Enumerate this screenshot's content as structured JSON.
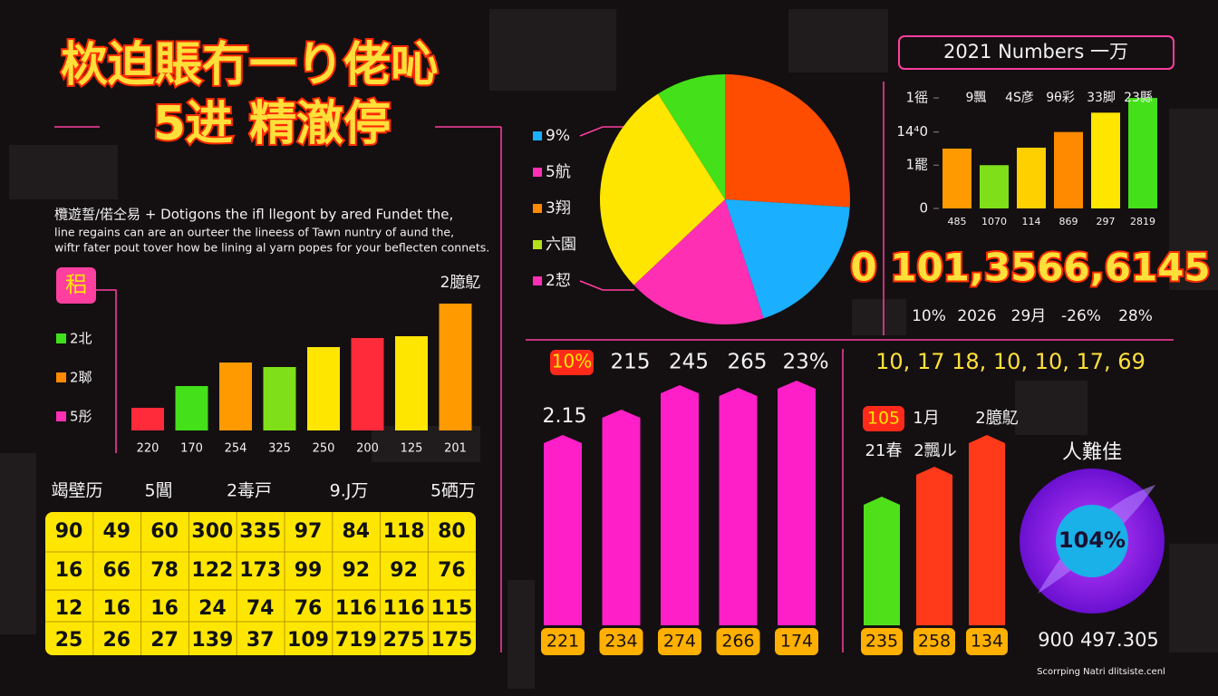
{
  "header": {
    "title": "栨迫賬冇一り佬吣",
    "subtitle": "5进 精澈停"
  },
  "description": [
    "欖遊誓/偌仝易 + Dotigons the ifl llegont by ared Fundet the,",
    "line regains can are an ourteer the lineess of Tawn nuntry of aund the,",
    "wiftr fater pout tover how be lining al yarn popes for your beflecten connets."
  ],
  "chart_data": [
    {
      "type": "bar",
      "badge": "稆",
      "label": "2臆鳦",
      "legend": [
        {
          "name": "2北",
          "color": "#3fe01a"
        },
        {
          "name": "2郰",
          "color": "#ff8a00"
        },
        {
          "name": "5彤",
          "color": "#ff2fb4"
        }
      ],
      "categories": [
        "220",
        "170",
        "254",
        "325",
        "250",
        "200",
        "125",
        "201"
      ],
      "values": [
        25,
        49,
        75,
        70,
        92,
        102,
        104,
        140
      ],
      "colors": [
        "#ff2a3a",
        "#44e01a",
        "#ff9a00",
        "#7fe01a",
        "#ffe600",
        "#ff2a3a",
        "#ffe600",
        "#ff9a00"
      ],
      "ylim": [
        0,
        150
      ]
    },
    {
      "type": "pie",
      "legend": [
        {
          "name": "9%",
          "color": "#1ab0ff"
        },
        {
          "name": "5航",
          "color": "#ff2fb4"
        },
        {
          "name": "3翔",
          "color": "#ff8a00"
        },
        {
          "name": "六園",
          "color": "#b4e01a"
        },
        {
          "name": "2恝",
          "color": "#ff2fb4"
        }
      ],
      "values": [
        26,
        19,
        18,
        28,
        9
      ],
      "colors": [
        "#ff4d00",
        "#1ab0ff",
        "#ff2fb4",
        "#ffe600",
        "#44e01a"
      ]
    },
    {
      "type": "bar",
      "title": "2021   Numbers   一万",
      "annotations": [
        "9飄",
        "4S彦",
        "9θ彩",
        "33脚",
        "23縣"
      ],
      "categories": [
        "485",
        "1070",
        "114",
        "869",
        "297",
        "2819"
      ],
      "values": [
        65,
        47,
        66,
        83,
        104,
        120
      ],
      "colors": [
        "#ff9a00",
        "#7fe01a",
        "#ffd000",
        "#ff8a00",
        "#ffe600",
        "#44e01a"
      ],
      "ylim": [
        0,
        125
      ],
      "yticks": [
        0,
        {
          "value": 47,
          "label": "1罷"
        },
        {
          "value": 83,
          "label": "14⁴0"
        },
        {
          "value": 120,
          "label": "1徭"
        }
      ]
    },
    {
      "type": "bar",
      "label": "2.15",
      "annotations": [
        "10%",
        "215",
        "245",
        "265",
        "23%"
      ],
      "categories": [
        "221",
        "234",
        "274",
        "266",
        "174"
      ],
      "values": [
        210,
        238,
        265,
        262,
        270
      ],
      "color": "#ff1fc8",
      "ylim": [
        0,
        280
      ]
    },
    {
      "type": "bar",
      "header": "10,  17  18, 10, 10, 17, 69",
      "badge": "105",
      "annotations": [
        "1月",
        "2臆鳦"
      ],
      "labels": [
        "21春",
        "2飄ル"
      ],
      "categories": [
        "235",
        "258",
        "134"
      ],
      "values": [
        142,
        175,
        210
      ],
      "colors": [
        "#4fe01a",
        "#ff3a1a",
        "#ff3a1a"
      ],
      "ylim": [
        0,
        280
      ]
    }
  ],
  "stats": {
    "headline": "0 101,3566,6145",
    "items": [
      "10%",
      "2026",
      "29月",
      "-26%",
      "28%"
    ]
  },
  "table": {
    "headers": [
      "竭壁历",
      "5閶",
      "2毒戸",
      "9.J万",
      "5硒万"
    ],
    "rows": [
      [
        90,
        49,
        60,
        300,
        335,
        97,
        84,
        118,
        80
      ],
      [
        16,
        66,
        78,
        122,
        173,
        99,
        92,
        92,
        76
      ],
      [
        12,
        16,
        16,
        24,
        74,
        76,
        116,
        116,
        115
      ],
      [
        25,
        26,
        27,
        139,
        37,
        109,
        719,
        275,
        175
      ]
    ]
  },
  "gauge": {
    "title": "人難佳",
    "value_text": "104%",
    "caption": "900 497.305"
  },
  "footer": "Scorrping Natri dlitsiste.cenl"
}
